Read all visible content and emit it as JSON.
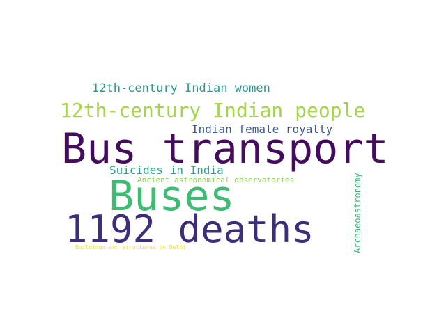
{
  "words": [
    {
      "text": "Bus transport",
      "color": "#440c5c"
    },
    {
      "text": "Buses",
      "color": "#3fbc73"
    },
    {
      "text": "1192 deaths",
      "color": "#3e2e7a"
    },
    {
      "text": "12th-century Indian people",
      "color": "#a5d64a"
    },
    {
      "text": "12th-century Indian women",
      "color": "#2e978c"
    },
    {
      "text": "Indian female royalty",
      "color": "#3d5a8c"
    },
    {
      "text": "Suicides in India",
      "color": "#29a38a"
    },
    {
      "text": "Ancient astronomical observatories",
      "color": "#8fd15a"
    },
    {
      "text": "Archaeoastronomy",
      "color": "#3fb67e"
    },
    {
      "text": "Buildings and structures in Delhi",
      "color": "#f2e13a"
    }
  ]
}
